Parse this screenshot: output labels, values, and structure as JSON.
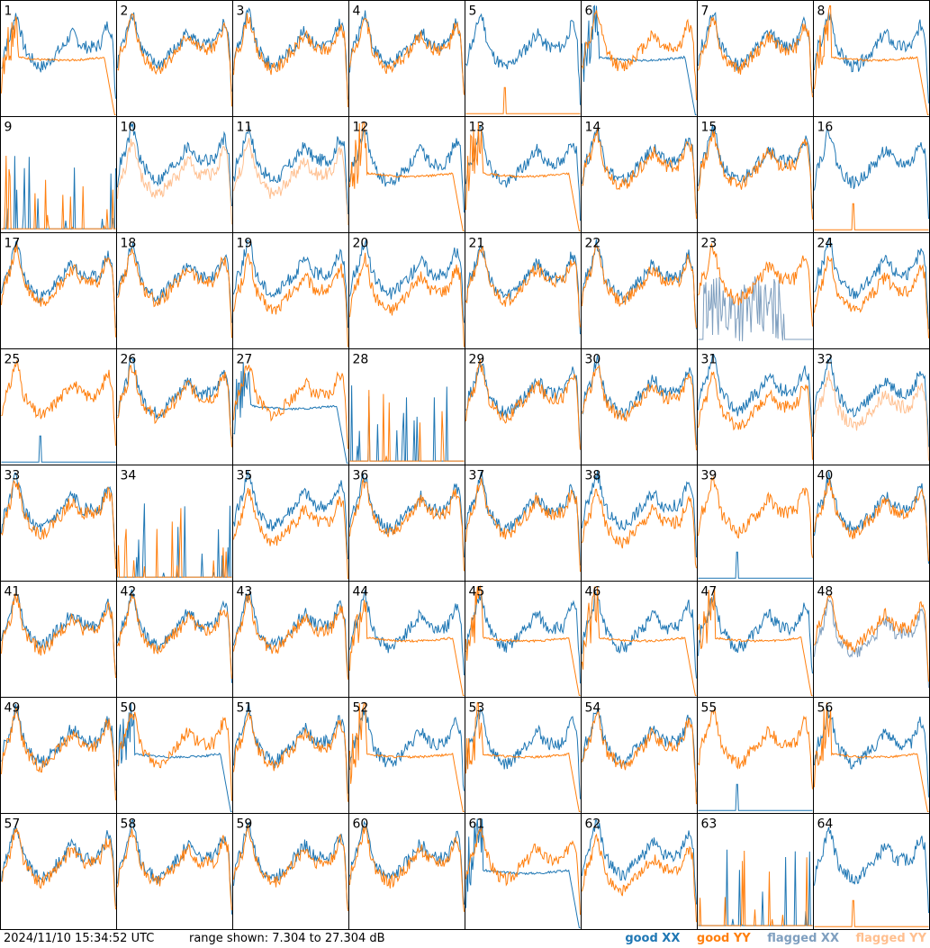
{
  "chart_data": {
    "type": "line",
    "panel_labels": [
      "1",
      "2",
      "3",
      "4",
      "5",
      "6",
      "7",
      "8",
      "9",
      "10",
      "11",
      "12",
      "13",
      "14",
      "15",
      "16",
      "17",
      "18",
      "19",
      "20",
      "21",
      "22",
      "23",
      "24",
      "25",
      "26",
      "27",
      "28",
      "29",
      "30",
      "31",
      "32",
      "33",
      "34",
      "35",
      "36",
      "37",
      "38",
      "39",
      "40",
      "41",
      "42",
      "43",
      "44",
      "45",
      "46",
      "47",
      "48",
      "49",
      "50",
      "51",
      "52",
      "53",
      "54",
      "55",
      "56",
      "57",
      "58",
      "59",
      "60",
      "61",
      "62",
      "63",
      "64"
    ],
    "ylim": [
      7.304,
      27.304
    ],
    "y_unit": "dB",
    "series_legend": [
      {
        "name": "good XX",
        "color": "#1f77b4"
      },
      {
        "name": "good YY",
        "color": "#ff7f0e"
      },
      {
        "name": "flagged XX",
        "color": "#7f9fbf"
      },
      {
        "name": "flagged YY",
        "color": "#ffbf8f"
      }
    ],
    "panels": {
      "normal": [
        "2",
        "3",
        "4",
        "14",
        "15",
        "17",
        "18",
        "21",
        "22",
        "26",
        "29",
        "30",
        "33",
        "36",
        "37",
        "40",
        "41",
        "42",
        "43",
        "49",
        "51",
        "54",
        "57",
        "58",
        "59",
        "60"
      ],
      "xx_drop_yy_only": [
        "5",
        "16"
      ],
      "yy_decays": [
        "1",
        "8",
        "12",
        "13",
        "44",
        "45",
        "46",
        "47",
        "52",
        "53",
        "56"
      ],
      "xx_decays": [
        "6",
        "27",
        "50",
        "61"
      ],
      "sparse_spikes": [
        "9",
        "28",
        "34",
        "63"
      ],
      "xx_noisy_flagged": [
        "23"
      ],
      "flagged_yy": [
        "10",
        "11",
        "32"
      ],
      "flagged_xx": [
        "48"
      ],
      "xx_spike_low": [
        "39",
        "55"
      ],
      "yy_separated": [
        "19",
        "20",
        "24",
        "31",
        "35",
        "38",
        "62"
      ],
      "xx_only": [
        "64"
      ],
      "yy_only": [
        "25"
      ]
    }
  },
  "footer": {
    "timestamp": "2024/11/10 15:34:52 UTC",
    "range": "range shown: 7.304 to 27.304 dB",
    "legend": {
      "good_xx": "good XX",
      "good_yy": "good YY",
      "flagged_xx": "flagged XX",
      "flagged_yy": "flagged YY"
    }
  },
  "colors": {
    "good_xx": "#1f77b4",
    "good_yy": "#ff7f0e",
    "flagged_xx": "#7f9fbf",
    "flagged_yy": "#ffbf8f"
  }
}
